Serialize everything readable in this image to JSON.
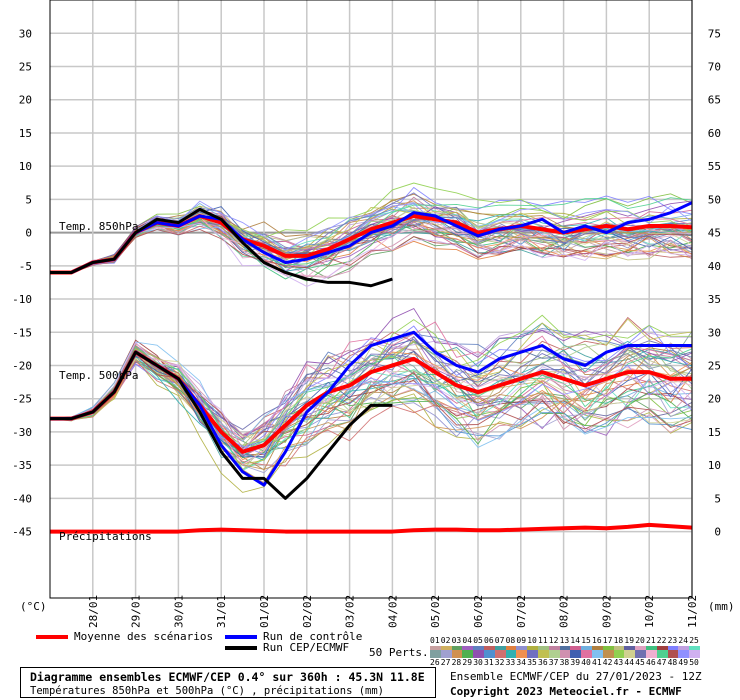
{
  "chart_data": {
    "type": "line",
    "title": "Diagramme ensembles ECMWF/CEP 0.4° sur 360h : 45.3N 11.8E",
    "subtitle": "Températures 850hPa et 500hPa (°C) , précipitations (mm)",
    "run_info": "Ensemble ECMWF/CEP du 27/01/2023 - 12Z",
    "copyright": "Copyright 2023 Meteociel.fr - ECMWF",
    "ylabel_left": "(°C)",
    "ylabel_right": "(mm)",
    "left_ticks": [
      30,
      25,
      20,
      15,
      10,
      5,
      0,
      -5,
      -10,
      -15,
      -20,
      -25,
      -30,
      -35,
      -40,
      -45
    ],
    "right_ticks": [
      75,
      70,
      65,
      60,
      55,
      50,
      45,
      40,
      35,
      30,
      25,
      20,
      15,
      10,
      5,
      0
    ],
    "ylim_left": [
      -55,
      32
    ],
    "x_ticks": [
      "28/01",
      "29/01",
      "30/01",
      "31/01",
      "01/02",
      "02/02",
      "03/02",
      "04/02",
      "05/02",
      "06/02",
      "07/02",
      "08/02",
      "09/02",
      "10/02",
      "11/02"
    ],
    "panel_labels": [
      "Temp. 850hPa",
      "Temp. 500hPa",
      "Précipitations"
    ],
    "hours": [
      0,
      12,
      24,
      36,
      48,
      60,
      72,
      84,
      96,
      108,
      120,
      132,
      144,
      156,
      168,
      180,
      192,
      204,
      216,
      228,
      240,
      252,
      264,
      276,
      288,
      300,
      312,
      324,
      336,
      348,
      360
    ],
    "series": [
      {
        "name": "Moyenne des scénarios",
        "group": "t850",
        "color": "#ff0000",
        "values": [
          -6,
          -6,
          -4.5,
          -4,
          0,
          1.5,
          1,
          2.5,
          1.5,
          -1,
          -2,
          -3.5,
          -3.5,
          -2.5,
          -1,
          0.5,
          1.5,
          2.5,
          2,
          1.5,
          0,
          0.5,
          1,
          0.5,
          0,
          0.5,
          1,
          0.5,
          1,
          1,
          0.8
        ]
      },
      {
        "name": "Run de contrôle",
        "group": "t850",
        "color": "#0000ff",
        "values": [
          -6,
          -6,
          -4.5,
          -4,
          0,
          1.5,
          1,
          2.5,
          2,
          -1,
          -3,
          -4.5,
          -4,
          -3,
          -2,
          0,
          1,
          3,
          2.5,
          1,
          -0.5,
          0.5,
          1,
          2,
          0,
          1,
          0,
          1.5,
          2,
          3,
          4.5
        ]
      },
      {
        "name": "Run CEP/ECMWF",
        "group": "t850",
        "color": "#000000",
        "values": [
          -6,
          -6,
          -4.5,
          -4,
          0,
          2,
          1.5,
          3.5,
          2,
          -1.5,
          -4.5,
          -6,
          -7,
          -7.5,
          -7.5,
          -8,
          -7
        ]
      },
      {
        "name": "Moyenne des scénarios",
        "group": "t500",
        "color": "#ff0000",
        "values": [
          -28,
          -28,
          -27,
          -24,
          -18,
          -20,
          -22,
          -26,
          -30,
          -33,
          -32,
          -29,
          -26,
          -24,
          -23,
          -21,
          -20,
          -19,
          -21,
          -23,
          -24,
          -23,
          -22,
          -21,
          -22,
          -23,
          -22,
          -21,
          -21,
          -22,
          -22
        ]
      },
      {
        "name": "Run de contrôle",
        "group": "t500",
        "color": "#0000ff",
        "values": [
          -28,
          -28,
          -27,
          -24,
          -18,
          -20,
          -22,
          -26,
          -32,
          -36,
          -38,
          -33,
          -27,
          -24,
          -20,
          -17,
          -16,
          -15,
          -18,
          -20,
          -21,
          -19,
          -18,
          -17,
          -19,
          -20,
          -18,
          -17,
          -17,
          -17,
          -17
        ]
      },
      {
        "name": "Run CEP/ECMWF",
        "group": "t500",
        "color": "#000000",
        "values": [
          -28,
          -28,
          -27,
          -24,
          -18,
          -20,
          -22,
          -27,
          -33,
          -37,
          -37,
          -40,
          -37,
          -33,
          -29,
          -26,
          -26
        ]
      },
      {
        "name": "Moyenne des scénarios",
        "group": "precip",
        "color": "#ff0000",
        "values": [
          0,
          0,
          0,
          0,
          0,
          0,
          0,
          0.2,
          0.3,
          0.2,
          0.1,
          0,
          0,
          0,
          0,
          0,
          0,
          0.2,
          0.3,
          0.3,
          0.2,
          0.2,
          0.3,
          0.4,
          0.5,
          0.6,
          0.5,
          0.7,
          1,
          0.8,
          0.6
        ]
      }
    ]
  },
  "legend": {
    "mean": "Moyenne des scénarios",
    "control": "Run de contrôle",
    "ecmwf": "Run CEP/ECMWF",
    "perts_label": "50 Perts."
  },
  "perturbations": {
    "row1": [
      "01",
      "02",
      "03",
      "04",
      "05",
      "06",
      "07",
      "08",
      "09",
      "10",
      "11",
      "12",
      "13",
      "14",
      "15",
      "16",
      "17",
      "18",
      "19",
      "20",
      "21",
      "22",
      "23",
      "24",
      "25"
    ],
    "row2": [
      "26",
      "27",
      "28",
      "29",
      "30",
      "31",
      "32",
      "33",
      "34",
      "35",
      "36",
      "37",
      "38",
      "39",
      "40",
      "41",
      "42",
      "43",
      "44",
      "45",
      "46",
      "47",
      "48",
      "49",
      "50"
    ],
    "colors": [
      "#c8a0a0",
      "#d0b060",
      "#60a060",
      "#a060c0",
      "#6080c0",
      "#c06060",
      "#40a0a0",
      "#e08040",
      "#9090d0",
      "#b0b040",
      "#a0c080",
      "#c080a0",
      "#5070a0",
      "#d06090",
      "#70b0e0",
      "#b08040",
      "#80c040",
      "#c0c080",
      "#6060a0",
      "#e0a0c0",
      "#40c080",
      "#a04040",
      "#8080ff",
      "#c0a0e0",
      "#60e0c0",
      "#80a0a0",
      "#a0a0d0",
      "#d09050",
      "#50b050",
      "#9050b0",
      "#5090d0",
      "#d07070",
      "#30b0b0",
      "#f09050",
      "#7070c0",
      "#c0c050",
      "#b0d090",
      "#d090b0",
      "#4060b0",
      "#e070a0",
      "#80c0f0",
      "#c09050",
      "#90d050",
      "#d0d090",
      "#7070b0",
      "#f0b0d0",
      "#50d090",
      "#b05050",
      "#9090ff",
      "#d0b0f0"
    ]
  }
}
